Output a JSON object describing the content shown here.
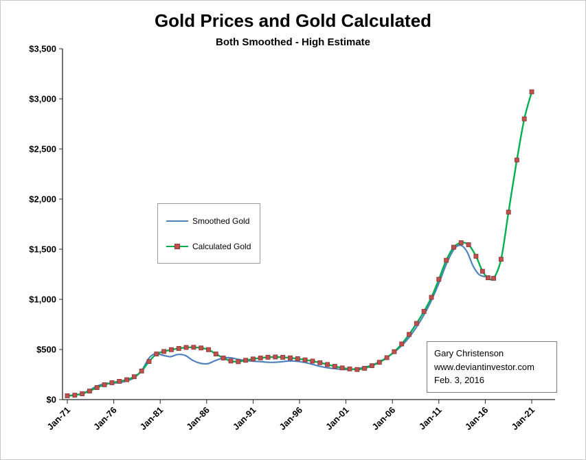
{
  "title": "Gold Prices and Gold Calculated",
  "subtitle": "Both Smoothed - High Estimate",
  "annotation": {
    "lines": [
      "Gary Christenson",
      "www.deviantinvestor.com",
      "Feb. 3, 2016"
    ]
  },
  "chart_data": {
    "type": "line",
    "title": "Gold Prices and Gold Calculated",
    "subtitle": "Both Smoothed - High Estimate",
    "xlabel": "",
    "ylabel": "",
    "grid": false,
    "legend_position": "inside-left",
    "ylim": [
      0,
      3500
    ],
    "y_ticks": [
      0,
      500,
      1000,
      1500,
      2000,
      2500,
      3000,
      3500
    ],
    "y_tick_labels": [
      "$0",
      "$500",
      "$1,000",
      "$1,500",
      "$2,000",
      "$2,500",
      "$3,000",
      "$3,500"
    ],
    "x_tick_years": [
      1971,
      1976,
      1981,
      1986,
      1991,
      1996,
      2001,
      2006,
      2011,
      2016,
      2021
    ],
    "x_tick_labels": [
      "Jan-71",
      "Jan-76",
      "Jan-81",
      "Jan-86",
      "Jan-91",
      "Jan-96",
      "Jan-01",
      "Jan-06",
      "Jan-11",
      "Jan-16",
      "Jan-21"
    ],
    "series": [
      {
        "name": "Smoothed Gold",
        "color": "#4f81bd",
        "line_width": 2.2,
        "smooth": true,
        "markers": false,
        "points": [
          [
            1971,
            40
          ],
          [
            1971.8,
            46
          ],
          [
            1972.6,
            60
          ],
          [
            1973.4,
            95
          ],
          [
            1974.2,
            135
          ],
          [
            1975,
            158
          ],
          [
            1975.8,
            164
          ],
          [
            1976.6,
            170
          ],
          [
            1977.4,
            186
          ],
          [
            1978.2,
            218
          ],
          [
            1979,
            290
          ],
          [
            1979.8,
            415
          ],
          [
            1980.5,
            458
          ],
          [
            1981.3,
            442
          ],
          [
            1982.1,
            428
          ],
          [
            1982.9,
            450
          ],
          [
            1983.7,
            440
          ],
          [
            1984.5,
            392
          ],
          [
            1985.3,
            363
          ],
          [
            1986.1,
            358
          ],
          [
            1986.9,
            388
          ],
          [
            1987.7,
            413
          ],
          [
            1988.5,
            418
          ],
          [
            1989.3,
            403
          ],
          [
            1990.1,
            391
          ],
          [
            1991,
            383
          ],
          [
            1992,
            377
          ],
          [
            1993,
            371
          ],
          [
            1994,
            377
          ],
          [
            1995,
            386
          ],
          [
            1996,
            379
          ],
          [
            1997,
            361
          ],
          [
            1998,
            336
          ],
          [
            1999,
            317
          ],
          [
            2000,
            306
          ],
          [
            2001,
            300
          ],
          [
            2002,
            306
          ],
          [
            2003,
            322
          ],
          [
            2004,
            352
          ],
          [
            2005,
            398
          ],
          [
            2006,
            460
          ],
          [
            2007,
            538
          ],
          [
            2008,
            645
          ],
          [
            2009,
            783
          ],
          [
            2010,
            950
          ],
          [
            2011,
            1160
          ],
          [
            2011.8,
            1350
          ],
          [
            2012.6,
            1495
          ],
          [
            2013.3,
            1540
          ],
          [
            2014,
            1480
          ],
          [
            2014.7,
            1330
          ],
          [
            2015.3,
            1250
          ],
          [
            2015.9,
            1228
          ],
          [
            2016.4,
            1232
          ]
        ]
      },
      {
        "name": "Calculated Gold",
        "color": "#00b050",
        "line_width": 2.4,
        "smooth": true,
        "markers": true,
        "marker_shape": "square",
        "marker_size": 6,
        "marker_color": "#c0504d",
        "marker_edge": "#8c3a38",
        "points": [
          [
            1971,
            38
          ],
          [
            1971.8,
            44
          ],
          [
            1972.6,
            58
          ],
          [
            1973.4,
            85
          ],
          [
            1974.2,
            120
          ],
          [
            1975,
            148
          ],
          [
            1975.8,
            168
          ],
          [
            1976.6,
            182
          ],
          [
            1977.4,
            198
          ],
          [
            1978.2,
            228
          ],
          [
            1979,
            285
          ],
          [
            1979.8,
            380
          ],
          [
            1980.6,
            455
          ],
          [
            1981.4,
            480
          ],
          [
            1982.2,
            498
          ],
          [
            1983,
            510
          ],
          [
            1983.8,
            520
          ],
          [
            1984.6,
            522
          ],
          [
            1985.4,
            515
          ],
          [
            1986.2,
            498
          ],
          [
            1987,
            455
          ],
          [
            1987.8,
            415
          ],
          [
            1988.6,
            385
          ],
          [
            1989.4,
            378
          ],
          [
            1990.2,
            392
          ],
          [
            1991,
            405
          ],
          [
            1991.8,
            415
          ],
          [
            1992.6,
            422
          ],
          [
            1993.4,
            425
          ],
          [
            1994.2,
            422
          ],
          [
            1995,
            416
          ],
          [
            1995.8,
            408
          ],
          [
            1996.6,
            396
          ],
          [
            1997.4,
            384
          ],
          [
            1998.2,
            368
          ],
          [
            1999,
            350
          ],
          [
            1999.8,
            332
          ],
          [
            2000.6,
            316
          ],
          [
            2001.4,
            306
          ],
          [
            2002.2,
            300
          ],
          [
            2003,
            312
          ],
          [
            2003.8,
            338
          ],
          [
            2004.6,
            372
          ],
          [
            2005.4,
            418
          ],
          [
            2006.2,
            478
          ],
          [
            2007,
            555
          ],
          [
            2007.8,
            650
          ],
          [
            2008.6,
            760
          ],
          [
            2009.4,
            880
          ],
          [
            2010.2,
            1020
          ],
          [
            2011,
            1200
          ],
          [
            2011.8,
            1390
          ],
          [
            2012.6,
            1520
          ],
          [
            2013.4,
            1565
          ],
          [
            2014.2,
            1545
          ],
          [
            2015,
            1430
          ],
          [
            2015.7,
            1280
          ],
          [
            2016.3,
            1215
          ],
          [
            2016.9,
            1210
          ],
          [
            2017.7,
            1400
          ],
          [
            2018.5,
            1870
          ],
          [
            2019.4,
            2390
          ],
          [
            2020.2,
            2800
          ],
          [
            2021,
            3070
          ]
        ]
      }
    ]
  }
}
